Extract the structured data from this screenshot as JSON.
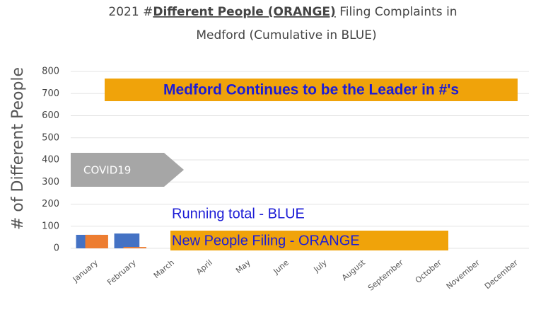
{
  "chart_data": {
    "type": "bar",
    "title": [
      "2021 #",
      "Different People (ORANGE)",
      " Filing Complaints in",
      "Medford (Cumulative in BLUE)"
    ],
    "y_label": "# of Different People",
    "categories": [
      "January",
      "February",
      "March",
      "April",
      "May",
      "June",
      "July",
      "August",
      "September",
      "October",
      "November",
      "December"
    ],
    "series": [
      {
        "color": "#4472c4",
        "values": [
          61,
          67,
          null,
          null,
          null,
          null,
          null,
          null,
          null,
          null,
          null,
          null
        ]
      },
      {
        "color": "#ed7d31",
        "values": [
          61,
          6,
          null,
          null,
          null,
          null,
          null,
          null,
          null,
          null,
          null,
          null
        ]
      }
    ],
    "ylim": [
      0,
      800
    ],
    "yticks": [
      0,
      100,
      200,
      300,
      400,
      500,
      600,
      700,
      800
    ],
    "grid": true,
    "annotations": {
      "headline": "Medford Continues to be the Leader in #'s",
      "covid": "COVID19",
      "running": "Running total - BLUE",
      "new": "New People Filing - ORANGE"
    }
  }
}
